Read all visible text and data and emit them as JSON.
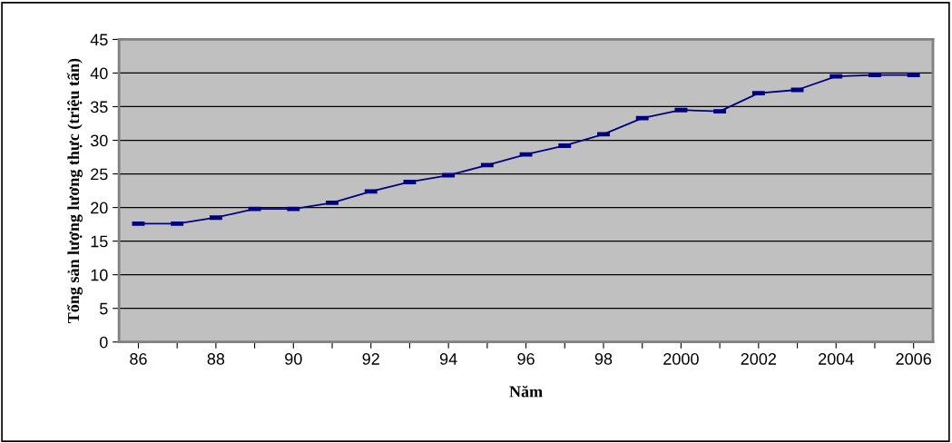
{
  "chart_data": {
    "type": "line",
    "xlabel": "Năm",
    "ylabel": "Tổng sản lượng lương thực (triệu tấn)",
    "categories": [
      "86",
      null,
      "88",
      null,
      "90",
      null,
      "92",
      null,
      "94",
      null,
      "96",
      null,
      "98",
      null,
      "2000",
      null,
      "2002",
      null,
      "2004",
      null,
      "2006"
    ],
    "series": [
      {
        "color": "#000080",
        "values": [
          17.6,
          17.6,
          18.5,
          19.8,
          19.8,
          20.7,
          22.4,
          23.8,
          24.8,
          26.3,
          27.9,
          29.2,
          30.9,
          33.3,
          34.5,
          34.3,
          37.0,
          37.5,
          39.5,
          39.7,
          39.7
        ]
      }
    ],
    "ylim": [
      0,
      45
    ],
    "yticks": [
      0,
      5,
      10,
      15,
      20,
      25,
      30,
      35,
      40,
      45
    ],
    "grid": "y",
    "legend": false,
    "marker": "square",
    "line_style": "solid"
  }
}
